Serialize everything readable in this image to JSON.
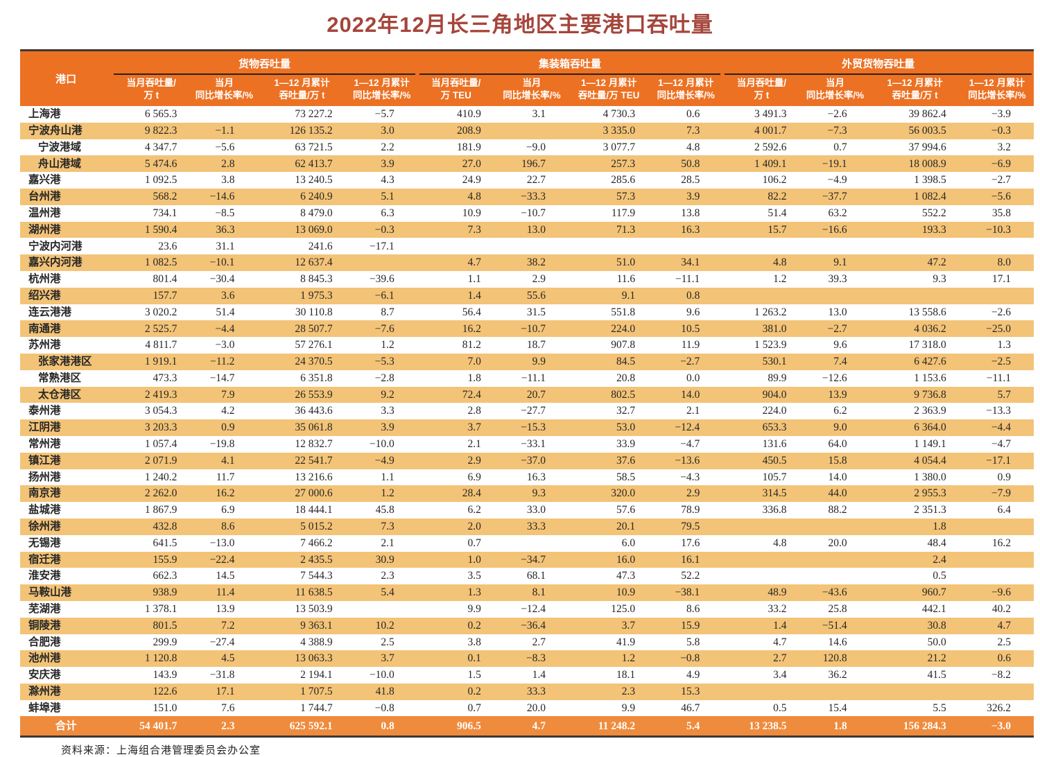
{
  "title": "2022年12月长三角地区主要港口吞吐量",
  "source_note": "资料来源：上海组合港管理委员会办公室",
  "colors": {
    "header_bg": "#ec7123",
    "stripe_bg": "#f3c377",
    "total_bg": "#ef8b3d",
    "title_color": "#a5453b",
    "border_dark": "#3d3833"
  },
  "table": {
    "port_header": "港口",
    "groups": [
      {
        "label": "货物吞吐量",
        "sub": [
          {
            "l1": "当月吞吐量/",
            "l2": "万 t"
          },
          {
            "l1": "当月",
            "l2": "同比增长率/%"
          },
          {
            "l1": "1—12 月累计",
            "l2": "吞吐量/万 t"
          },
          {
            "l1": "1—12 月累计",
            "l2": "同比增长率/%"
          }
        ]
      },
      {
        "label": "集装箱吞吐量",
        "sub": [
          {
            "l1": "当月吞吐量/",
            "l2": "万 TEU"
          },
          {
            "l1": "当月",
            "l2": "同比增长率/%"
          },
          {
            "l1": "1—12 月累计",
            "l2": "吞吐量/万 TEU"
          },
          {
            "l1": "1—12 月累计",
            "l2": "同比增长率/%"
          }
        ]
      },
      {
        "label": "外贸货物吞吐量",
        "sub": [
          {
            "l1": "当月吞吐量/",
            "l2": "万 t"
          },
          {
            "l1": "当月",
            "l2": "同比增长率/%"
          },
          {
            "l1": "1—12 月累计",
            "l2": "吞吐量/万 t"
          },
          {
            "l1": "1—12 月累计",
            "l2": "同比增长率/%"
          }
        ]
      }
    ],
    "rows": [
      {
        "port": "上海港",
        "indent": false,
        "values": [
          "6 565.3",
          "",
          "73 227.2",
          "−5.7",
          "410.9",
          "3.1",
          "4 730.3",
          "0.6",
          "3 491.3",
          "−2.6",
          "39 862.4",
          "−3.9"
        ]
      },
      {
        "port": "宁波舟山港",
        "indent": false,
        "values": [
          "9 822.3",
          "−1.1",
          "126 135.2",
          "3.0",
          "208.9",
          "",
          "3 335.0",
          "7.3",
          "4 001.7",
          "−7.3",
          "56 003.5",
          "−0.3"
        ]
      },
      {
        "port": "宁波港域",
        "indent": true,
        "values": [
          "4 347.7",
          "−5.6",
          "63 721.5",
          "2.2",
          "181.9",
          "−9.0",
          "3 077.7",
          "4.8",
          "2 592.6",
          "0.7",
          "37 994.6",
          "3.2"
        ]
      },
      {
        "port": "舟山港域",
        "indent": true,
        "values": [
          "5 474.6",
          "2.8",
          "62 413.7",
          "3.9",
          "27.0",
          "196.7",
          "257.3",
          "50.8",
          "1 409.1",
          "−19.1",
          "18 008.9",
          "−6.9"
        ]
      },
      {
        "port": "嘉兴港",
        "indent": false,
        "values": [
          "1 092.5",
          "3.8",
          "13 240.5",
          "4.3",
          "24.9",
          "22.7",
          "285.6",
          "28.5",
          "106.2",
          "−4.9",
          "1 398.5",
          "−2.7"
        ]
      },
      {
        "port": "台州港",
        "indent": false,
        "values": [
          "568.2",
          "−14.6",
          "6 240.9",
          "5.1",
          "4.8",
          "−33.3",
          "57.3",
          "3.9",
          "82.2",
          "−37.7",
          "1 082.4",
          "−5.6"
        ]
      },
      {
        "port": "温州港",
        "indent": false,
        "values": [
          "734.1",
          "−8.5",
          "8 479.0",
          "6.3",
          "10.9",
          "−10.7",
          "117.9",
          "13.8",
          "51.4",
          "63.2",
          "552.2",
          "35.8"
        ]
      },
      {
        "port": "湖州港",
        "indent": false,
        "values": [
          "1 590.4",
          "36.3",
          "13 069.0",
          "−0.3",
          "7.3",
          "13.0",
          "71.3",
          "16.3",
          "15.7",
          "−16.6",
          "193.3",
          "−10.3"
        ]
      },
      {
        "port": "宁波内河港",
        "indent": false,
        "values": [
          "23.6",
          "31.1",
          "241.6",
          "−17.1",
          "",
          "",
          "",
          "",
          "",
          "",
          "",
          ""
        ]
      },
      {
        "port": "嘉兴内河港",
        "indent": false,
        "values": [
          "1 082.5",
          "−10.1",
          "12 637.4",
          "",
          "4.7",
          "38.2",
          "51.0",
          "34.1",
          "4.8",
          "9.1",
          "47.2",
          "8.0"
        ]
      },
      {
        "port": "杭州港",
        "indent": false,
        "values": [
          "801.4",
          "−30.4",
          "8 845.3",
          "−39.6",
          "1.1",
          "2.9",
          "11.6",
          "−11.1",
          "1.2",
          "39.3",
          "9.3",
          "17.1"
        ]
      },
      {
        "port": "绍兴港",
        "indent": false,
        "values": [
          "157.7",
          "3.6",
          "1 975.3",
          "−6.1",
          "1.4",
          "55.6",
          "9.1",
          "0.8",
          "",
          "",
          "",
          ""
        ]
      },
      {
        "port": "连云港港",
        "indent": false,
        "values": [
          "3 020.2",
          "51.4",
          "30 110.8",
          "8.7",
          "56.4",
          "31.5",
          "551.8",
          "9.6",
          "1 263.2",
          "13.0",
          "13 558.6",
          "−2.6"
        ]
      },
      {
        "port": "南通港",
        "indent": false,
        "values": [
          "2 525.7",
          "−4.4",
          "28 507.7",
          "−7.6",
          "16.2",
          "−10.7",
          "224.0",
          "10.5",
          "381.0",
          "−2.7",
          "4 036.2",
          "−25.0"
        ]
      },
      {
        "port": "苏州港",
        "indent": false,
        "values": [
          "4 811.7",
          "−3.0",
          "57 276.1",
          "1.2",
          "81.2",
          "18.7",
          "907.8",
          "11.9",
          "1 523.9",
          "9.6",
          "17 318.0",
          "1.3"
        ]
      },
      {
        "port": "张家港港区",
        "indent": true,
        "values": [
          "1 919.1",
          "−11.2",
          "24 370.5",
          "−5.3",
          "7.0",
          "9.9",
          "84.5",
          "−2.7",
          "530.1",
          "7.4",
          "6 427.6",
          "−2.5"
        ]
      },
      {
        "port": "常熟港区",
        "indent": true,
        "values": [
          "473.3",
          "−14.7",
          "6 351.8",
          "−2.8",
          "1.8",
          "−11.1",
          "20.8",
          "0.0",
          "89.9",
          "−12.6",
          "1 153.6",
          "−11.1"
        ]
      },
      {
        "port": "太仓港区",
        "indent": true,
        "values": [
          "2 419.3",
          "7.9",
          "26 553.9",
          "9.2",
          "72.4",
          "20.7",
          "802.5",
          "14.0",
          "904.0",
          "13.9",
          "9 736.8",
          "5.7"
        ]
      },
      {
        "port": "泰州港",
        "indent": false,
        "values": [
          "3 054.3",
          "4.2",
          "36 443.6",
          "3.3",
          "2.8",
          "−27.7",
          "32.7",
          "2.1",
          "224.0",
          "6.2",
          "2 363.9",
          "−13.3"
        ]
      },
      {
        "port": "江阴港",
        "indent": false,
        "values": [
          "3 203.3",
          "0.9",
          "35 061.8",
          "3.9",
          "3.7",
          "−15.3",
          "53.0",
          "−12.4",
          "653.3",
          "9.0",
          "6 364.0",
          "−4.4"
        ]
      },
      {
        "port": "常州港",
        "indent": false,
        "values": [
          "1 057.4",
          "−19.8",
          "12 832.7",
          "−10.0",
          "2.1",
          "−33.1",
          "33.9",
          "−4.7",
          "131.6",
          "64.0",
          "1 149.1",
          "−4.7"
        ]
      },
      {
        "port": "镇江港",
        "indent": false,
        "values": [
          "2 071.9",
          "4.1",
          "22 541.7",
          "−4.9",
          "2.9",
          "−37.0",
          "37.6",
          "−13.6",
          "450.5",
          "15.8",
          "4 054.4",
          "−17.1"
        ]
      },
      {
        "port": "扬州港",
        "indent": false,
        "values": [
          "1 240.2",
          "11.7",
          "13 216.6",
          "1.1",
          "6.9",
          "16.3",
          "58.5",
          "−4.3",
          "105.7",
          "14.0",
          "1 380.0",
          "0.9"
        ]
      },
      {
        "port": "南京港",
        "indent": false,
        "values": [
          "2 262.0",
          "16.2",
          "27 000.6",
          "1.2",
          "28.4",
          "9.3",
          "320.0",
          "2.9",
          "314.5",
          "44.0",
          "2 955.3",
          "−7.9"
        ]
      },
      {
        "port": "盐城港",
        "indent": false,
        "values": [
          "1 867.9",
          "6.9",
          "18 444.1",
          "45.8",
          "6.2",
          "33.0",
          "57.6",
          "78.9",
          "336.8",
          "88.2",
          "2 351.3",
          "6.4"
        ]
      },
      {
        "port": "徐州港",
        "indent": false,
        "values": [
          "432.8",
          "8.6",
          "5 015.2",
          "7.3",
          "2.0",
          "33.3",
          "20.1",
          "79.5",
          "",
          "",
          "1.8",
          ""
        ]
      },
      {
        "port": "无锡港",
        "indent": false,
        "values": [
          "641.5",
          "−13.0",
          "7 466.2",
          "2.1",
          "0.7",
          "",
          "6.0",
          "17.6",
          "4.8",
          "20.0",
          "48.4",
          "16.2"
        ]
      },
      {
        "port": "宿迁港",
        "indent": false,
        "values": [
          "155.9",
          "−22.4",
          "2 435.5",
          "30.9",
          "1.0",
          "−34.7",
          "16.0",
          "16.1",
          "",
          "",
          "2.4",
          ""
        ]
      },
      {
        "port": "淮安港",
        "indent": false,
        "values": [
          "662.3",
          "14.5",
          "7 544.3",
          "2.3",
          "3.5",
          "68.1",
          "47.3",
          "52.2",
          "",
          "",
          "0.5",
          ""
        ]
      },
      {
        "port": "马鞍山港",
        "indent": false,
        "values": [
          "938.9",
          "11.4",
          "11 638.5",
          "5.4",
          "1.3",
          "8.1",
          "10.9",
          "−38.1",
          "48.9",
          "−43.6",
          "960.7",
          "−9.6"
        ]
      },
      {
        "port": "芜湖港",
        "indent": false,
        "values": [
          "1 378.1",
          "13.9",
          "13 503.9",
          "",
          "9.9",
          "−12.4",
          "125.0",
          "8.6",
          "33.2",
          "25.8",
          "442.1",
          "40.2"
        ]
      },
      {
        "port": "铜陵港",
        "indent": false,
        "values": [
          "801.5",
          "7.2",
          "9 363.1",
          "10.2",
          "0.2",
          "−36.4",
          "3.7",
          "15.9",
          "1.4",
          "−51.4",
          "30.8",
          "4.7"
        ]
      },
      {
        "port": "合肥港",
        "indent": false,
        "values": [
          "299.9",
          "−27.4",
          "4 388.9",
          "2.5",
          "3.8",
          "2.7",
          "41.9",
          "5.8",
          "4.7",
          "14.6",
          "50.0",
          "2.5"
        ]
      },
      {
        "port": "池州港",
        "indent": false,
        "values": [
          "1 120.8",
          "4.5",
          "13 063.3",
          "3.7",
          "0.1",
          "−8.3",
          "1.2",
          "−0.8",
          "2.7",
          "120.8",
          "21.2",
          "0.6"
        ]
      },
      {
        "port": "安庆港",
        "indent": false,
        "values": [
          "143.9",
          "−31.8",
          "2 194.1",
          "−10.0",
          "1.5",
          "1.4",
          "18.1",
          "4.9",
          "3.4",
          "36.2",
          "41.5",
          "−8.2"
        ]
      },
      {
        "port": "滁州港",
        "indent": false,
        "values": [
          "122.6",
          "17.1",
          "1 707.5",
          "41.8",
          "0.2",
          "33.3",
          "2.3",
          "15.3",
          "",
          "",
          "",
          ""
        ]
      },
      {
        "port": "蚌埠港",
        "indent": false,
        "values": [
          "151.0",
          "7.6",
          "1 744.7",
          "−0.8",
          "0.7",
          "20.0",
          "9.9",
          "46.7",
          "0.5",
          "15.4",
          "5.5",
          "326.2"
        ]
      }
    ],
    "total": {
      "label": "合计",
      "values": [
        "54 401.7",
        "2.3",
        "625 592.1",
        "0.8",
        "906.5",
        "4.7",
        "11 248.2",
        "5.4",
        "13 238.5",
        "1.8",
        "156 284.3",
        "−3.0"
      ]
    }
  }
}
